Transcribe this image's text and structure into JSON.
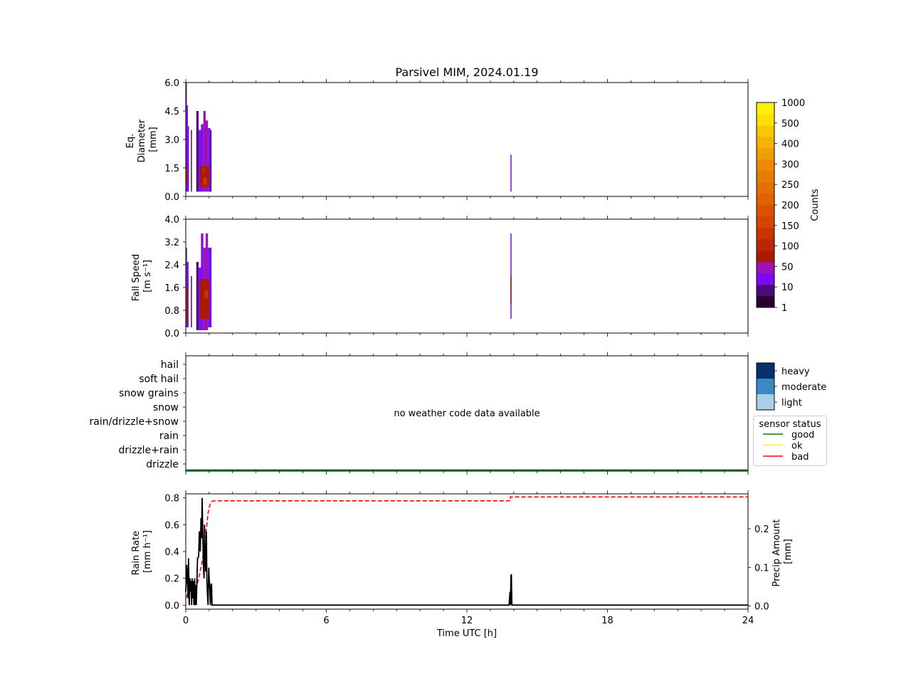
{
  "title": "Parsivel MIM, 2024.01.19",
  "chart_data": [
    {
      "panel": "diameter",
      "type": "heatmap",
      "ylabel_lines": [
        "Eq.",
        "Diameter",
        "[mm]"
      ],
      "ylim": [
        0,
        6.0
      ],
      "yticks": [
        "0.0",
        "1.5",
        "3.0",
        "4.5",
        "6.0"
      ],
      "xlim": [
        0,
        24
      ],
      "columns": [
        {
          "x0": 0.0,
          "x1": 0.03,
          "ymin": 0.25,
          "ymax": 6.0,
          "level": 1
        },
        {
          "x0": 0.03,
          "x1": 0.09,
          "ymin": 0.25,
          "ymax": 4.8,
          "level": 2
        },
        {
          "x0": 0.09,
          "x1": 0.13,
          "ymin": 0.25,
          "ymax": 3.7,
          "level": 2
        },
        {
          "x0": 0.22,
          "x1": 0.26,
          "ymin": 0.25,
          "ymax": 3.5,
          "level": 1
        },
        {
          "x0": 0.45,
          "x1": 0.55,
          "ymin": 0.25,
          "ymax": 4.5,
          "level": 1
        },
        {
          "x0": 0.55,
          "x1": 0.65,
          "ymin": 0.25,
          "ymax": 3.5,
          "level": 2
        },
        {
          "x0": 0.65,
          "x1": 0.75,
          "ymin": 0.25,
          "ymax": 3.8,
          "level": 2
        },
        {
          "x0": 0.75,
          "x1": 0.85,
          "ymin": 0.25,
          "ymax": 4.5,
          "level": 3
        },
        {
          "x0": 0.85,
          "x1": 0.95,
          "ymin": 0.25,
          "ymax": 4.0,
          "level": 3
        },
        {
          "x0": 0.95,
          "x1": 1.05,
          "ymin": 0.25,
          "ymax": 3.6,
          "level": 2
        },
        {
          "x0": 1.05,
          "x1": 1.1,
          "ymin": 0.25,
          "ymax": 3.5,
          "level": 1
        },
        {
          "x0": 13.86,
          "x1": 13.9,
          "ymin": 0.25,
          "ymax": 2.2,
          "level": 2
        }
      ],
      "cores": [
        {
          "x0": 0.03,
          "x1": 0.09,
          "ymin": 0.6,
          "ymax": 1.6,
          "level": 4
        },
        {
          "x0": 0.6,
          "x1": 1.0,
          "ymin": 0.5,
          "ymax": 1.6,
          "level": 4
        },
        {
          "x0": 0.75,
          "x1": 0.9,
          "ymin": 0.6,
          "ymax": 1.0,
          "level": 6
        },
        {
          "x0": 0.7,
          "x1": 0.8,
          "ymin": 1.2,
          "ymax": 1.5,
          "level": 5
        }
      ]
    },
    {
      "panel": "fall-speed",
      "type": "heatmap",
      "ylabel_lines": [
        "Fall Speed",
        "[m s⁻¹]"
      ],
      "ylim": [
        0,
        4.0
      ],
      "yticks": [
        "0.0",
        "0.8",
        "1.6",
        "2.4",
        "3.2",
        "4.0"
      ],
      "xlim": [
        0,
        24
      ],
      "columns": [
        {
          "x0": 0.0,
          "x1": 0.05,
          "ymin": 0.2,
          "ymax": 3.0,
          "level": 1
        },
        {
          "x0": 0.05,
          "x1": 0.12,
          "ymin": 0.2,
          "ymax": 2.5,
          "level": 2
        },
        {
          "x0": 0.22,
          "x1": 0.26,
          "ymin": 0.2,
          "ymax": 2.0,
          "level": 1
        },
        {
          "x0": 0.45,
          "x1": 0.55,
          "ymin": 0.1,
          "ymax": 2.5,
          "level": 1
        },
        {
          "x0": 0.55,
          "x1": 0.65,
          "ymin": 0.1,
          "ymax": 2.3,
          "level": 2
        },
        {
          "x0": 0.65,
          "x1": 0.75,
          "ymin": 0.1,
          "ymax": 3.5,
          "level": 2
        },
        {
          "x0": 0.75,
          "x1": 0.85,
          "ymin": 0.1,
          "ymax": 3.0,
          "level": 3
        },
        {
          "x0": 0.85,
          "x1": 0.95,
          "ymin": 0.1,
          "ymax": 3.5,
          "level": 3
        },
        {
          "x0": 0.95,
          "x1": 1.1,
          "ymin": 0.2,
          "ymax": 3.0,
          "level": 2
        },
        {
          "x0": 13.86,
          "x1": 13.9,
          "ymin": 0.5,
          "ymax": 3.5,
          "level": 2
        }
      ],
      "cores": [
        {
          "x0": 0.03,
          "x1": 0.1,
          "ymin": 0.4,
          "ymax": 1.6,
          "level": 4
        },
        {
          "x0": 0.6,
          "x1": 1.0,
          "ymin": 0.5,
          "ymax": 1.9,
          "level": 4
        },
        {
          "x0": 0.8,
          "x1": 0.95,
          "ymin": 1.2,
          "ymax": 1.5,
          "level": 6
        },
        {
          "x0": 13.86,
          "x1": 13.9,
          "ymin": 1.0,
          "ymax": 2.0,
          "level": 4
        }
      ]
    },
    {
      "panel": "weather-code",
      "type": "line",
      "categories": [
        "drizzle",
        "drizzle+rain",
        "rain",
        "rain/drizzle+snow",
        "snow",
        "snow grains",
        "soft hail",
        "hail"
      ],
      "message": "no weather code data available",
      "xlim": [
        0,
        24
      ],
      "status_line": {
        "name": "good",
        "x": [
          0,
          24
        ]
      }
    },
    {
      "panel": "rain-rate",
      "type": "line",
      "ylabel_lines": [
        "Rain Rate",
        "[mm h⁻¹]"
      ],
      "ylabel2_lines": [
        "Precip Amount",
        "[mm]"
      ],
      "xlabel": "Time UTC [h]",
      "xlim": [
        0,
        24
      ],
      "ylim": [
        -0.03,
        0.83
      ],
      "yticks": [
        "0.0",
        "0.2",
        "0.4",
        "0.6",
        "0.8"
      ],
      "ylim2": [
        -0.008,
        0.29
      ],
      "yticks2": [
        "0.0",
        "0.1",
        "0.2"
      ],
      "xticks": [
        "0",
        "6",
        "12",
        "18",
        "24"
      ],
      "series": [
        {
          "color": "#000000",
          "x": [
            0,
            0.05,
            0.1,
            0.12,
            0.15,
            0.18,
            0.2,
            0.23,
            0.25,
            0.27,
            0.3,
            0.32,
            0.35,
            0.38,
            0.4,
            0.42,
            0.45,
            0.5,
            0.55,
            0.58,
            0.62,
            0.65,
            0.68,
            0.7,
            0.72,
            0.75,
            0.78,
            0.8,
            0.82,
            0.85,
            0.88,
            0.9,
            0.92,
            0.95,
            0.98,
            1.0,
            1.02,
            1.05,
            1.08,
            1.1,
            1.12,
            1.15,
            1.18,
            1.2,
            13.8,
            13.84,
            13.86,
            13.88,
            13.9,
            13.92,
            24
          ],
          "y": [
            0.1,
            0.3,
            0.05,
            0.35,
            0.0,
            0.2,
            0.1,
            0.18,
            0.0,
            0.2,
            0.05,
            0.18,
            0.0,
            0.2,
            0.0,
            0.15,
            0.0,
            0.35,
            0.36,
            0.55,
            0.4,
            0.65,
            0.5,
            0.8,
            0.6,
            0.3,
            0.2,
            0.6,
            0.4,
            0.25,
            0.55,
            0.2,
            0.1,
            0.0,
            0.28,
            0.2,
            0.15,
            0.0,
            0.15,
            0.16,
            0.0,
            0.0,
            0.0,
            0.0,
            0.0,
            0.1,
            0.0,
            0.22,
            0.23,
            0.0,
            0.0
          ]
        },
        {
          "color": "#ff0000",
          "axis": "right",
          "dashed": true,
          "x": [
            0,
            0.1,
            0.2,
            0.3,
            0.4,
            0.5,
            0.6,
            0.7,
            0.75,
            0.8,
            0.85,
            0.9,
            0.95,
            1.0,
            1.05,
            1.1,
            1.2,
            13.85,
            13.86,
            24
          ],
          "y": [
            0.02,
            0.035,
            0.045,
            0.05,
            0.055,
            0.06,
            0.085,
            0.115,
            0.135,
            0.17,
            0.19,
            0.21,
            0.24,
            0.255,
            0.265,
            0.27,
            0.272,
            0.272,
            0.282,
            0.282
          ]
        }
      ]
    }
  ],
  "colorbar": {
    "label": "Counts",
    "ticks": [
      "1",
      "10",
      "50",
      "100",
      "150",
      "200",
      "250",
      "300",
      "400",
      "500",
      "1000"
    ],
    "colors": [
      "#2b0030",
      "#4b0a78",
      "#7a0af5",
      "#9b12b8",
      "#aa1a00",
      "#bc2600",
      "#c93300",
      "#d54500",
      "#dc5200",
      "#e06200",
      "#e46e00",
      "#e87c00",
      "#ec8a00",
      "#efa000",
      "#f2b400",
      "#f5c800",
      "#ffe000",
      "#fff200"
    ]
  },
  "intensity_legend": {
    "items": [
      "heavy",
      "moderate",
      "light"
    ],
    "colors": [
      "#08306b",
      "#3a88c4",
      "#a9cfe5"
    ]
  },
  "status_legend": {
    "title": "sensor status",
    "items": [
      {
        "label": "good",
        "color": "#008000"
      },
      {
        "label": "ok",
        "color": "#ffff00"
      },
      {
        "label": "bad",
        "color": "#ff0000"
      }
    ]
  }
}
